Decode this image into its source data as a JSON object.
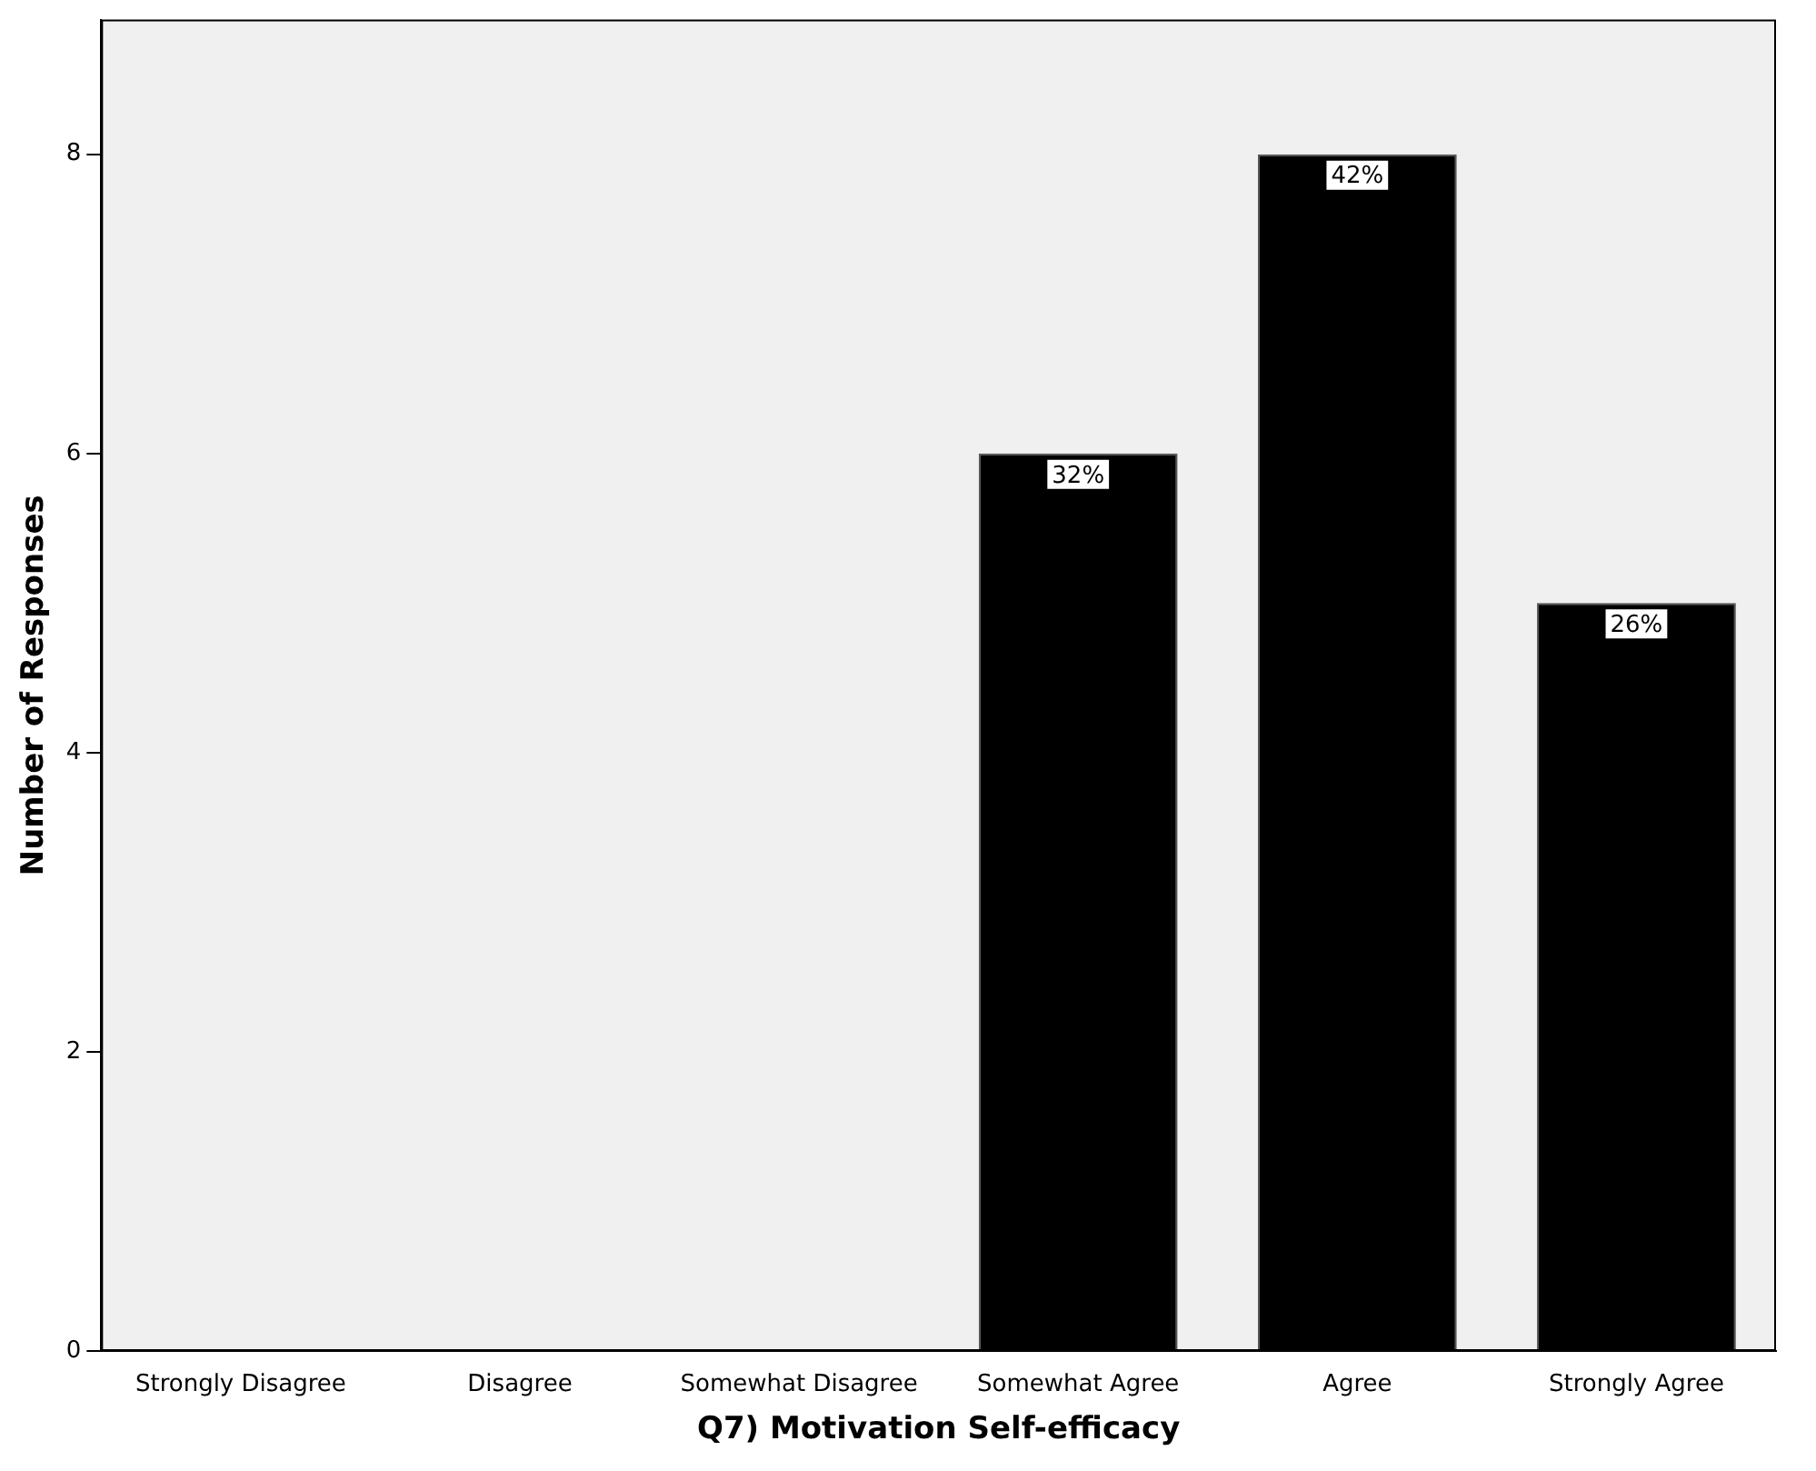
{
  "chart_data": {
    "type": "bar",
    "xlabel": "Q7) Motivation Self-efficacy",
    "ylabel": "Number of Responses",
    "categories": [
      "Strongly Disagree",
      "Disagree",
      "Somewhat Disagree",
      "Somewhat Agree",
      "Agree",
      "Strongly Agree"
    ],
    "values": [
      0,
      0,
      0,
      6,
      8,
      5
    ],
    "color": "#000000",
    "annotations": [
      {
        "text": "32%",
        "x": "Somewhat Agree",
        "y": 6
      },
      {
        "text": "42%",
        "x": "Agree",
        "y": 8
      },
      {
        "text": "26%",
        "x": "Strongly Agree",
        "y": 5
      }
    ],
    "ylim": [
      0,
      8.9
    ],
    "yticks": [
      0,
      2,
      4,
      6,
      8
    ],
    "grid": false,
    "legend": false
  }
}
